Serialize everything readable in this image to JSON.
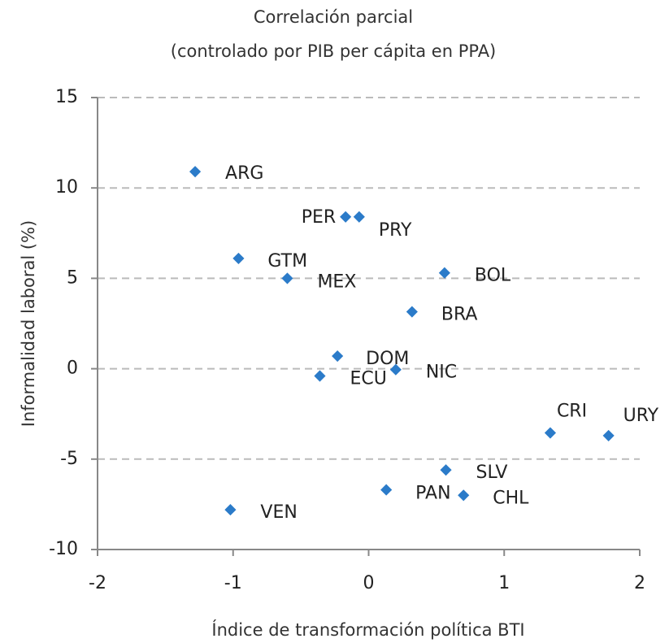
{
  "chart_data": {
    "type": "scatter",
    "title": "Correlación parcial",
    "subtitle": "(controlado por PIB per cápita en PPA)",
    "x_label": "Índice de transformación política BTI",
    "y_label": "Informalidad laboral (%)",
    "color": "#2b7bc9",
    "point_labels": [
      "ARG",
      "PER",
      "PRY",
      "GTM",
      "MEX",
      "BOL",
      "BRA",
      "DOM",
      "ECU",
      "NIC",
      "CRI",
      "URY",
      "SLV",
      "PAN",
      "CHL",
      "VEN"
    ],
    "x": [
      -1.28,
      -0.17,
      -0.07,
      -0.96,
      -0.6,
      0.56,
      0.32,
      -0.23,
      -0.36,
      0.2,
      1.34,
      1.77,
      0.57,
      0.13,
      0.7,
      -1.02
    ],
    "values": [
      10.9,
      8.4,
      8.4,
      6.1,
      5.0,
      5.3,
      3.15,
      0.7,
      -0.4,
      -0.05,
      -3.55,
      -3.7,
      -5.6,
      -6.7,
      -7.0,
      -7.8
    ],
    "xlim": [
      -2,
      2
    ],
    "xticks": [
      -2,
      -1,
      0,
      1,
      2
    ],
    "ylim": [
      -10,
      15
    ],
    "yticks": [
      -10,
      -5,
      0,
      5,
      10,
      15
    ],
    "grid": true
  }
}
